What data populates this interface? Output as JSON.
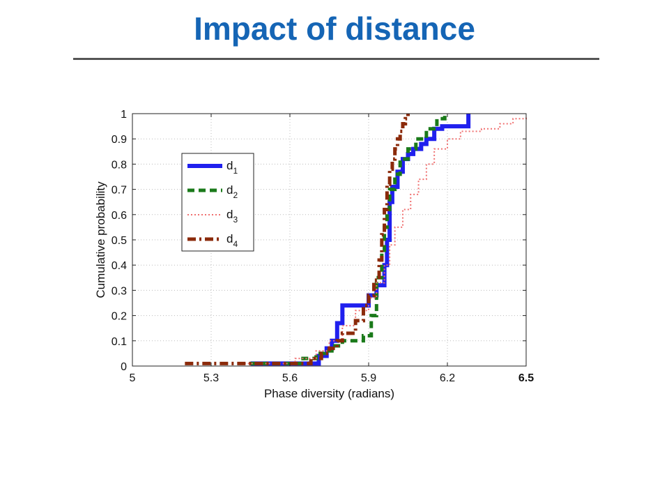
{
  "slide": {
    "title": "Impact of distance"
  },
  "chart_data": {
    "type": "line",
    "title": "",
    "xlabel": "Phase diversity (radians)",
    "ylabel": "Cumulative probability",
    "xlim": [
      5,
      6.5
    ],
    "ylim": [
      0,
      1
    ],
    "xticks": [
      5,
      5.3,
      5.6,
      5.9,
      6.2,
      6.5
    ],
    "xtick_labels": [
      "5",
      "5.3",
      "5.6",
      "5.9",
      "6.2",
      "6.5"
    ],
    "yticks": [
      0,
      0.1,
      0.2,
      0.3,
      0.4,
      0.5,
      0.6,
      0.7,
      0.8,
      0.9,
      1
    ],
    "ytick_labels": [
      "0",
      "0.1",
      "0.2",
      "0.3",
      "0.4",
      "0.5",
      "0.6",
      "0.7",
      "0.8",
      "0.9",
      "1"
    ],
    "grid": true,
    "legend_position": "left",
    "series": [
      {
        "name": "d",
        "subscript": "1",
        "color": "#2020ee",
        "style": "solid",
        "x": [
          5.45,
          5.68,
          5.71,
          5.74,
          5.76,
          5.78,
          5.8,
          5.88,
          5.9,
          5.93,
          5.96,
          5.97,
          5.98,
          5.99,
          6.01,
          6.03,
          6.05,
          6.07,
          6.1,
          6.12,
          6.15,
          6.18,
          6.28,
          6.28
        ],
        "y": [
          0.01,
          0.01,
          0.04,
          0.07,
          0.1,
          0.17,
          0.24,
          0.24,
          0.28,
          0.32,
          0.4,
          0.5,
          0.65,
          0.71,
          0.77,
          0.82,
          0.84,
          0.86,
          0.88,
          0.9,
          0.94,
          0.95,
          0.95,
          1.0
        ]
      },
      {
        "name": "d",
        "subscript": "2",
        "color": "#1a7a1a",
        "style": "dashed",
        "x": [
          5.45,
          5.6,
          5.65,
          5.7,
          5.73,
          5.76,
          5.8,
          5.85,
          5.88,
          5.91,
          5.93,
          5.95,
          5.96,
          5.97,
          5.98,
          6.0,
          6.02,
          6.05,
          6.08,
          6.12,
          6.16,
          6.19
        ],
        "y": [
          0.01,
          0.01,
          0.03,
          0.05,
          0.06,
          0.08,
          0.1,
          0.1,
          0.12,
          0.2,
          0.35,
          0.45,
          0.55,
          0.62,
          0.7,
          0.76,
          0.82,
          0.86,
          0.9,
          0.94,
          0.98,
          1.0
        ]
      },
      {
        "name": "d",
        "subscript": "3",
        "color": "#f07070",
        "style": "dotted",
        "x": [
          5.4,
          5.55,
          5.62,
          5.7,
          5.75,
          5.8,
          5.85,
          5.9,
          5.93,
          5.96,
          5.98,
          6.0,
          6.03,
          6.06,
          6.09,
          6.12,
          6.15,
          6.2,
          6.25,
          6.33,
          6.4,
          6.45,
          6.5
        ],
        "y": [
          0.01,
          0.01,
          0.03,
          0.06,
          0.1,
          0.16,
          0.22,
          0.27,
          0.33,
          0.4,
          0.48,
          0.55,
          0.62,
          0.68,
          0.74,
          0.8,
          0.86,
          0.9,
          0.93,
          0.94,
          0.96,
          0.98,
          0.99
        ]
      },
      {
        "name": "d",
        "subscript": "4",
        "color": "#8b2a0a",
        "style": "dashdot",
        "x": [
          5.2,
          5.62,
          5.68,
          5.72,
          5.75,
          5.78,
          5.8,
          5.85,
          5.88,
          5.9,
          5.92,
          5.94,
          5.95,
          5.96,
          5.97,
          5.98,
          5.99,
          6.0,
          6.01,
          6.02,
          6.03,
          6.04,
          6.05
        ],
        "y": [
          0.01,
          0.01,
          0.03,
          0.05,
          0.07,
          0.1,
          0.13,
          0.18,
          0.24,
          0.28,
          0.34,
          0.42,
          0.52,
          0.62,
          0.72,
          0.78,
          0.82,
          0.86,
          0.9,
          0.93,
          0.96,
          0.98,
          1.0
        ]
      }
    ]
  }
}
